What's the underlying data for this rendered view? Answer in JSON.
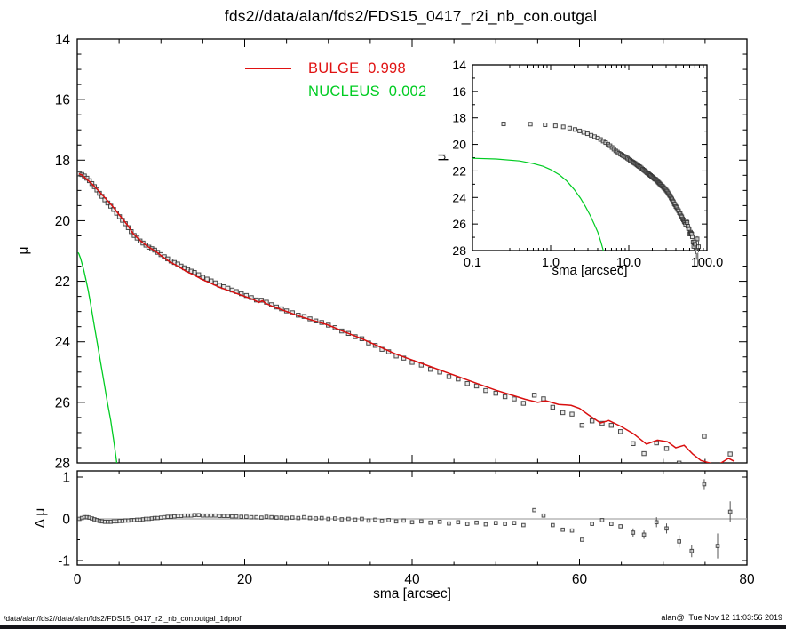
{
  "title": "fds2//data/alan/fds2/FDS15_0417_r2i_nb_con.outgal",
  "footer": {
    "left": "/data/alan/fds2//data/alan/fds2/FDS15_0417_r2i_nb_con.outgal_1dprof",
    "right": "alan@  Tue Nov 12 11:03:56 2019"
  },
  "legend": [
    {
      "label": "BULGE  0.998",
      "color": "#e01212"
    },
    {
      "label": "NUCLEUS  0.002",
      "color": "#00cc22"
    }
  ],
  "colors": {
    "bulge_line": "#d90f0f",
    "nucleus_line": "#00cc22",
    "data_marker": "#2a2a2a",
    "zero_line": "#a9a9a9",
    "frame": "#000000"
  },
  "chart_data": [
    {
      "id": "main",
      "type": "scatter",
      "xlabel": "sma [arcsec]",
      "ylabel": "μ",
      "xlim": [
        0,
        80
      ],
      "ylim": [
        28,
        14
      ],
      "x_ticks": [
        0,
        20,
        40,
        60,
        80
      ],
      "y_ticks": [
        14,
        16,
        18,
        20,
        22,
        24,
        26,
        28
      ],
      "grid": false,
      "legend_position": "top-inside",
      "series": [
        {
          "name": "data",
          "style": "open-square",
          "source": "profile_data_from_residuals"
        },
        {
          "name": "BULGE 0.998",
          "style": "line",
          "source": "bulge_model"
        },
        {
          "name": "NUCLEUS 0.002",
          "style": "line",
          "source": "nucleus_model"
        }
      ]
    },
    {
      "id": "inset",
      "type": "scatter",
      "xscale": "log",
      "xlabel": "sma [arcsec]",
      "ylabel": "μ",
      "xlim": [
        0.1,
        100
      ],
      "ylim": [
        28,
        14
      ],
      "x_tick_labels": [
        "0.1",
        "1.0",
        "10.0",
        "100.0"
      ],
      "x_ticks": [
        0.1,
        1.0,
        10.0,
        100.0
      ],
      "y_ticks": [
        14,
        16,
        18,
        20,
        22,
        24,
        26,
        28
      ],
      "grid": false,
      "series": [
        {
          "name": "data",
          "style": "open-square",
          "source": "profile_data_from_residuals"
        },
        {
          "name": "NUCLEUS 0.002",
          "style": "line",
          "source": "nucleus_model"
        }
      ]
    },
    {
      "id": "residual",
      "type": "scatter",
      "xlabel": "sma [arcsec]",
      "ylabel": "Δ μ",
      "xlim": [
        0,
        80
      ],
      "ylim": [
        -1.1,
        1.15
      ],
      "x_ticks": [
        0,
        20,
        40,
        60,
        80
      ],
      "y_ticks": [
        1,
        0,
        -1
      ],
      "grid": false,
      "series": [
        {
          "name": "residuals",
          "style": "open-square-errorbar",
          "source": "residuals"
        }
      ]
    }
  ],
  "series_data": {
    "note": "residuals are [sma, delta_mu, err?]; observed data points satisfy mu_data = mu_model(sma) - delta_mu",
    "bulge_model": [
      [
        0.2,
        18.45
      ],
      [
        0.6,
        18.5
      ],
      [
        1.0,
        18.6
      ],
      [
        1.5,
        18.72
      ],
      [
        2.0,
        18.85
      ],
      [
        2.5,
        19.0
      ],
      [
        3.0,
        19.15
      ],
      [
        3.5,
        19.3
      ],
      [
        4.0,
        19.45
      ],
      [
        4.5,
        19.62
      ],
      [
        5.0,
        19.8
      ],
      [
        5.5,
        19.97
      ],
      [
        6.0,
        20.15
      ],
      [
        6.7,
        20.43
      ],
      [
        7.5,
        20.65
      ],
      [
        8.4,
        20.85
      ],
      [
        9.3,
        21.0
      ],
      [
        10.0,
        21.15
      ],
      [
        11.0,
        21.35
      ],
      [
        12.0,
        21.5
      ],
      [
        13.0,
        21.67
      ],
      [
        14.0,
        21.8
      ],
      [
        15.0,
        21.95
      ],
      [
        16.0,
        22.07
      ],
      [
        17.0,
        22.2
      ],
      [
        18.0,
        22.3
      ],
      [
        19.0,
        22.4
      ],
      [
        20.0,
        22.5
      ],
      [
        21.0,
        22.6
      ],
      [
        21.7,
        22.7
      ],
      [
        22.1,
        22.64
      ],
      [
        22.5,
        22.73
      ],
      [
        23.5,
        22.85
      ],
      [
        25.0,
        23.0
      ],
      [
        26.5,
        23.15
      ],
      [
        28.0,
        23.28
      ],
      [
        30.0,
        23.45
      ],
      [
        32.0,
        23.68
      ],
      [
        34.0,
        23.9
      ],
      [
        36.0,
        24.15
      ],
      [
        38.0,
        24.4
      ],
      [
        40.0,
        24.6
      ],
      [
        42.0,
        24.8
      ],
      [
        44.0,
        25.0
      ],
      [
        46.0,
        25.2
      ],
      [
        48.0,
        25.4
      ],
      [
        50.0,
        25.6
      ],
      [
        52.0,
        25.77
      ],
      [
        53.5,
        25.9
      ],
      [
        55.0,
        26.0
      ],
      [
        56.0,
        25.95
      ],
      [
        57.5,
        26.07
      ],
      [
        59.0,
        26.1
      ],
      [
        60.0,
        26.2
      ],
      [
        61.0,
        26.4
      ],
      [
        62.5,
        26.68
      ],
      [
        63.5,
        26.6
      ],
      [
        65.0,
        26.8
      ],
      [
        66.5,
        27.05
      ],
      [
        68.0,
        27.38
      ],
      [
        69.3,
        27.25
      ],
      [
        70.5,
        27.3
      ],
      [
        71.5,
        27.5
      ],
      [
        72.5,
        27.42
      ],
      [
        73.5,
        27.7
      ],
      [
        74.5,
        27.92
      ],
      [
        75.8,
        28.02
      ],
      [
        76.8,
        28.02
      ],
      [
        77.8,
        27.85
      ],
      [
        78.5,
        27.95
      ]
    ],
    "nucleus_model": [
      [
        0.1,
        21.05
      ],
      [
        0.2,
        21.1
      ],
      [
        0.4,
        21.25
      ],
      [
        0.6,
        21.45
      ],
      [
        0.8,
        21.65
      ],
      [
        1.0,
        21.9
      ],
      [
        1.3,
        22.3
      ],
      [
        1.6,
        22.75
      ],
      [
        2.0,
        23.4
      ],
      [
        2.4,
        24.05
      ],
      [
        2.8,
        24.7
      ],
      [
        3.2,
        25.35
      ],
      [
        3.6,
        26.0
      ],
      [
        4.0,
        26.6
      ],
      [
        4.4,
        27.35
      ],
      [
        4.8,
        28.15
      ]
    ],
    "residuals": [
      [
        0.25,
        0.0
      ],
      [
        0.55,
        0.02
      ],
      [
        0.85,
        0.04
      ],
      [
        1.15,
        0.04
      ],
      [
        1.45,
        0.03
      ],
      [
        1.75,
        0.01
      ],
      [
        2.05,
        -0.01
      ],
      [
        2.35,
        -0.03
      ],
      [
        2.65,
        -0.05
      ],
      [
        2.95,
        -0.06
      ],
      [
        3.3,
        -0.07
      ],
      [
        3.65,
        -0.07
      ],
      [
        4.0,
        -0.07
      ],
      [
        4.35,
        -0.06
      ],
      [
        4.7,
        -0.06
      ],
      [
        5.05,
        -0.05
      ],
      [
        5.4,
        -0.05
      ],
      [
        5.75,
        -0.04
      ],
      [
        6.1,
        -0.04
      ],
      [
        6.45,
        -0.03
      ],
      [
        6.8,
        -0.03
      ],
      [
        7.15,
        -0.02
      ],
      [
        7.5,
        -0.02
      ],
      [
        7.85,
        -0.01
      ],
      [
        8.2,
        0.0
      ],
      [
        8.55,
        0.0
      ],
      [
        8.9,
        0.01
      ],
      [
        9.25,
        0.02
      ],
      [
        9.6,
        0.02
      ],
      [
        10.0,
        0.03
      ],
      [
        10.4,
        0.04
      ],
      [
        10.8,
        0.05
      ],
      [
        11.2,
        0.05
      ],
      [
        11.6,
        0.06
      ],
      [
        12.0,
        0.07
      ],
      [
        12.4,
        0.07
      ],
      [
        12.8,
        0.08
      ],
      [
        13.2,
        0.08
      ],
      [
        13.6,
        0.08
      ],
      [
        14.0,
        0.09
      ],
      [
        14.5,
        0.09
      ],
      [
        15.0,
        0.08
      ],
      [
        15.5,
        0.08
      ],
      [
        16.0,
        0.08
      ],
      [
        16.5,
        0.08
      ],
      [
        17.0,
        0.07
      ],
      [
        17.5,
        0.07
      ],
      [
        18.0,
        0.07
      ],
      [
        18.5,
        0.06
      ],
      [
        19.0,
        0.06
      ],
      [
        19.6,
        0.05
      ],
      [
        20.2,
        0.05
      ],
      [
        20.8,
        0.04
      ],
      [
        21.4,
        0.04
      ],
      [
        22.0,
        0.03
      ],
      [
        22.6,
        0.05
      ],
      [
        23.2,
        0.04
      ],
      [
        23.8,
        0.03
      ],
      [
        24.4,
        0.03
      ],
      [
        25.0,
        0.02
      ],
      [
        25.7,
        0.03
      ],
      [
        26.4,
        0.02
      ],
      [
        27.1,
        0.04
      ],
      [
        27.8,
        0.02
      ],
      [
        28.5,
        0.01
      ],
      [
        29.2,
        0.02
      ],
      [
        30.0,
        0.0
      ],
      [
        30.8,
        0.01
      ],
      [
        31.6,
        -0.01
      ],
      [
        32.4,
        0.0
      ],
      [
        33.2,
        -0.02
      ],
      [
        34.0,
        0.0
      ],
      [
        34.8,
        -0.04
      ],
      [
        35.6,
        -0.02
      ],
      [
        36.4,
        -0.05
      ],
      [
        37.2,
        -0.03
      ],
      [
        38.1,
        -0.06
      ],
      [
        39.0,
        -0.04
      ],
      [
        40.0,
        -0.08
      ],
      [
        41.1,
        -0.06
      ],
      [
        42.2,
        -0.09
      ],
      [
        43.3,
        -0.07
      ],
      [
        44.4,
        -0.11
      ],
      [
        45.5,
        -0.08
      ],
      [
        46.6,
        -0.12
      ],
      [
        47.7,
        -0.09
      ],
      [
        48.8,
        -0.13
      ],
      [
        50.0,
        -0.1
      ],
      [
        51.1,
        -0.12
      ],
      [
        52.2,
        -0.1
      ],
      [
        53.3,
        -0.15
      ],
      [
        54.6,
        0.21
      ],
      [
        55.7,
        0.08
      ],
      [
        56.8,
        -0.15
      ],
      [
        58.0,
        -0.26
      ],
      [
        59.1,
        -0.28
      ],
      [
        60.3,
        -0.5
      ],
      [
        61.5,
        -0.12
      ],
      [
        62.7,
        -0.03
      ],
      [
        63.8,
        -0.12
      ],
      [
        64.9,
        -0.18
      ],
      [
        66.4,
        -0.33,
        0.1
      ],
      [
        67.7,
        -0.38,
        0.1
      ],
      [
        69.2,
        -0.08,
        0.12
      ],
      [
        70.4,
        -0.23,
        0.12
      ],
      [
        71.9,
        -0.54,
        0.15
      ],
      [
        73.4,
        -0.77,
        0.15
      ],
      [
        74.9,
        0.83,
        0.12
      ],
      [
        76.5,
        -0.65,
        0.3
      ],
      [
        78.0,
        0.17,
        0.25
      ]
    ]
  }
}
